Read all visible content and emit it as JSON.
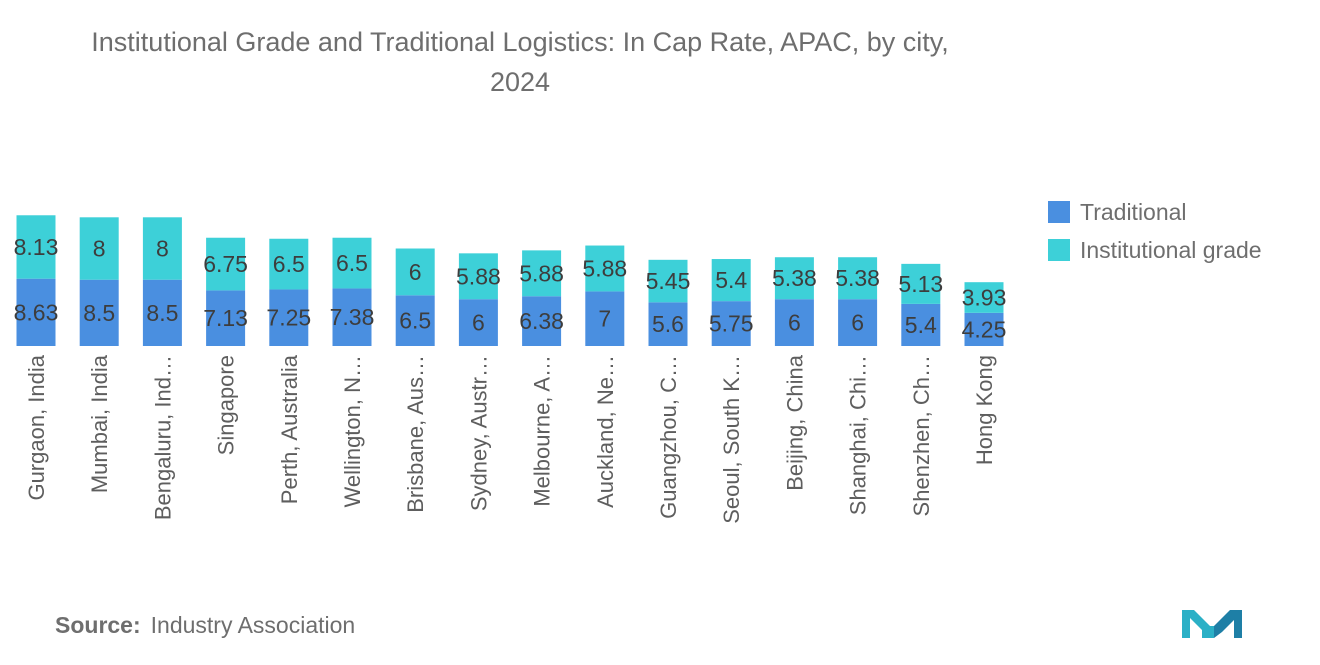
{
  "chart_data": {
    "type": "bar",
    "stacked": true,
    "title": "Institutional Grade and Traditional Logistics: In Cap Rate, APAC, by city, 2024",
    "categories": [
      "Gurgaon, India",
      "Mumbai, India",
      "Bengaluru, Ind…",
      "Singapore",
      "Perth, Australia",
      "Wellington, N…",
      "Brisbane, Aus…",
      "Sydney, Austr…",
      "Melbourne, A…",
      "Auckland, Ne…",
      "Guangzhou, C…",
      "Seoul, South K…",
      "Beijing, China",
      "Shanghai, Chi…",
      "Shenzhen, Ch…",
      "Hong Kong"
    ],
    "series": [
      {
        "name": "Traditional",
        "color": "#4a8fe0",
        "values": [
          8.63,
          8.5,
          8.5,
          7.13,
          7.25,
          7.38,
          6.5,
          6,
          6.38,
          7,
          5.6,
          5.75,
          6,
          6,
          5.4,
          4.25
        ]
      },
      {
        "name": "Institutional grade",
        "color": "#3dd0d8",
        "values": [
          8.13,
          8,
          8,
          6.75,
          6.5,
          6.5,
          6,
          5.88,
          5.88,
          5.88,
          5.45,
          5.4,
          5.38,
          5.38,
          5.13,
          3.93
        ]
      }
    ],
    "labels": {
      "traditional": [
        "8.63",
        "8.5",
        "8.5",
        "7.13",
        "7.25",
        "7.38",
        "6.5",
        "6",
        "6.38",
        "7",
        "5.6",
        "5.75",
        "6",
        "6",
        "5.4",
        "4.25"
      ],
      "institutional": [
        "8.13",
        "8",
        "8",
        "6.75",
        "6.5",
        "6.5",
        "6",
        "5.88",
        "5.88",
        "5.88",
        "5.45",
        "5.4",
        "5.38",
        "5.38",
        "5.13",
        "3.93"
      ]
    },
    "xlabel": "",
    "ylabel": "",
    "legend_position": "right",
    "grid": false
  },
  "header": {
    "title_line1": "Institutional Grade and Traditional Logistics: In Cap Rate, APAC, by city,",
    "title_line2": "2024"
  },
  "legend": {
    "traditional_label": "Traditional",
    "institutional_label": "Institutional grade",
    "traditional_color": "#4a8fe0",
    "institutional_color": "#3dd0d8"
  },
  "footer": {
    "source_label": "Source:",
    "source_value": "Industry Association"
  },
  "logo": {
    "icon": "mordor-logo-icon",
    "color": "#2bb0c6"
  }
}
